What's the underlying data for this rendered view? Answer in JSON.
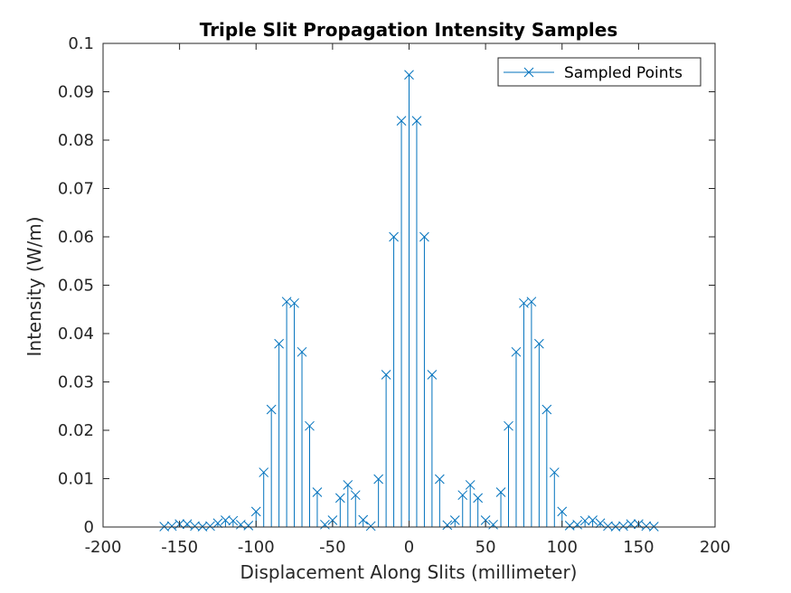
{
  "chart_data": {
    "type": "stem",
    "title": "Triple Slit Propagation Intensity Samples",
    "xlabel": "Displacement Along Slits (millimeter)",
    "ylabel": "Intensity (W/m)",
    "xlim": [
      -200,
      200
    ],
    "ylim": [
      0,
      0.1
    ],
    "xticks": [
      -200,
      -150,
      -100,
      -50,
      0,
      50,
      100,
      150,
      200
    ],
    "xtick_labels": [
      "-200",
      "-150",
      "-100",
      "-50",
      "0",
      "50",
      "100",
      "150",
      "200"
    ],
    "yticks": [
      0,
      0.01,
      0.02,
      0.03,
      0.04,
      0.05,
      0.06,
      0.07,
      0.08,
      0.09,
      0.1
    ],
    "ytick_labels": [
      "0",
      "0.01",
      "0.02",
      "0.03",
      "0.04",
      "0.05",
      "0.06",
      "0.07",
      "0.08",
      "0.09",
      "0.1"
    ],
    "grid": false,
    "legend_position": "top-right",
    "marker": "x",
    "color": "#0072BD",
    "series": [
      {
        "name": "Sampled Points",
        "x": [
          -160,
          -155,
          -150,
          -145,
          -140,
          -135,
          -130,
          -125,
          -120,
          -115,
          -110,
          -105,
          -100,
          -95,
          -90,
          -85,
          -80,
          -75,
          -70,
          -65,
          -60,
          -55,
          -50,
          -45,
          -40,
          -35,
          -30,
          -25,
          -20,
          -15,
          -10,
          -5,
          0,
          5,
          10,
          15,
          20,
          25,
          30,
          35,
          40,
          45,
          50,
          55,
          60,
          65,
          70,
          75,
          80,
          85,
          90,
          95,
          100,
          105,
          110,
          115,
          120,
          125,
          130,
          135,
          140,
          145,
          150,
          155,
          160
        ],
        "y": [
          0.0001,
          0.0002,
          0.0006,
          0.0006,
          0.0002,
          0.0001,
          0.0002,
          0.0008,
          0.0014,
          0.0013,
          0.0005,
          0.0003,
          0.0032,
          0.0113,
          0.0243,
          0.0379,
          0.0466,
          0.0463,
          0.0362,
          0.0209,
          0.0072,
          0.0005,
          0.0014,
          0.006,
          0.0087,
          0.0066,
          0.0015,
          0.0002,
          0.0099,
          0.0315,
          0.06,
          0.084,
          0.0935,
          0.084,
          0.06,
          0.0315,
          0.0099,
          0.0004,
          0.0014,
          0.0066,
          0.0087,
          0.006,
          0.0014,
          0.0005,
          0.0072,
          0.0209,
          0.0362,
          0.0463,
          0.0466,
          0.0379,
          0.0243,
          0.0113,
          0.0032,
          0.0003,
          0.0005,
          0.0013,
          0.0014,
          0.0008,
          0.0002,
          0.0001,
          0.0002,
          0.0006,
          0.0006,
          0.0002,
          0.0001
        ]
      }
    ]
  }
}
